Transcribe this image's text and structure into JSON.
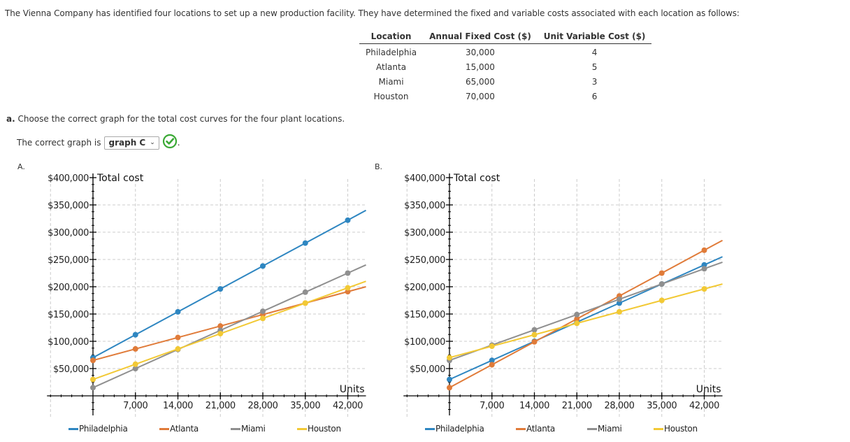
{
  "intro": "The Vienna Company has identified four locations to set up a new production facility. They have determined the fixed and variable costs associated with each location as follows:",
  "table": {
    "headers": [
      "Location",
      "Annual Fixed Cost ($)",
      "Unit Variable Cost ($)"
    ],
    "rows": [
      [
        "Philadelphia",
        "30,000",
        "4"
      ],
      [
        "Atlanta",
        "15,000",
        "5"
      ],
      [
        "Miami",
        "65,000",
        "3"
      ],
      [
        "Houston",
        "70,000",
        "6"
      ]
    ]
  },
  "question": {
    "prefix": "a.",
    "text": "Choose the correct graph for the total cost curves for the four plant locations.",
    "answer_prefix": "The correct graph is",
    "selected_option": "graph C",
    "answer_suffix": ".",
    "status": "correct"
  },
  "colors": {
    "Philadelphia": "#2e86c1",
    "Atlanta": "#e07b39",
    "Miami": "#8f8f8f",
    "Houston": "#f2c935",
    "check": "#3aa935"
  },
  "chart_data": [
    {
      "label": "A.",
      "type": "line",
      "title": "Total cost",
      "xlabel": "Units",
      "ylabel": "Total cost",
      "x": [
        0,
        7000,
        14000,
        21000,
        28000,
        35000,
        42000
      ],
      "x_tick_labels": [
        "7,000",
        "14,000",
        "21,000",
        "28,000",
        "35,000",
        "42,000"
      ],
      "y_tick_labels": [
        "$50,000",
        "$100,000",
        "$150,000",
        "$200,000",
        "$250,000",
        "$300,000",
        "$350,000",
        "$400,000"
      ],
      "xlim": [
        -7000,
        45000
      ],
      "ylim": [
        0,
        400000
      ],
      "grid": true,
      "legend_position": "bottom",
      "series": [
        {
          "name": "Philadelphia",
          "fixed": 70000,
          "slope": 6,
          "values": [
            70000,
            112000,
            154000,
            196000,
            238000,
            280000,
            322000
          ]
        },
        {
          "name": "Atlanta",
          "fixed": 65000,
          "slope": 3,
          "values": [
            65000,
            86000,
            107000,
            128000,
            149000,
            170000,
            191000
          ]
        },
        {
          "name": "Miami",
          "fixed": 15000,
          "slope": 5,
          "values": [
            15000,
            50000,
            85000,
            120000,
            155000,
            190000,
            225000
          ]
        },
        {
          "name": "Houston",
          "fixed": 30000,
          "slope": 4,
          "values": [
            30000,
            58000,
            86000,
            114000,
            142000,
            170000,
            198000
          ]
        }
      ]
    },
    {
      "label": "B.",
      "type": "line",
      "title": "Total cost",
      "xlabel": "Units",
      "ylabel": "Total cost",
      "x": [
        0,
        7000,
        14000,
        21000,
        28000,
        35000,
        42000
      ],
      "x_tick_labels": [
        "7,000",
        "14,000",
        "21,000",
        "28,000",
        "35,000",
        "42,000"
      ],
      "y_tick_labels": [
        "$50,000",
        "$100,000",
        "$150,000",
        "$200,000",
        "$250,000",
        "$300,000",
        "$350,000",
        "$400,000"
      ],
      "xlim": [
        -7000,
        45000
      ],
      "ylim": [
        0,
        400000
      ],
      "grid": true,
      "legend_position": "bottom",
      "series": [
        {
          "name": "Philadelphia",
          "fixed": 30000,
          "slope": 5,
          "values": [
            30000,
            65000,
            100000,
            135000,
            170000,
            205000,
            240000
          ]
        },
        {
          "name": "Atlanta",
          "fixed": 15000,
          "slope": 6,
          "values": [
            15000,
            57000,
            99000,
            141000,
            183000,
            225000,
            267000
          ]
        },
        {
          "name": "Miami",
          "fixed": 65000,
          "slope": 4,
          "values": [
            65000,
            93000,
            121000,
            149000,
            177000,
            205000,
            233000
          ]
        },
        {
          "name": "Houston",
          "fixed": 70000,
          "slope": 3,
          "values": [
            70000,
            91000,
            112000,
            133000,
            154000,
            175000,
            196000
          ]
        }
      ]
    }
  ]
}
